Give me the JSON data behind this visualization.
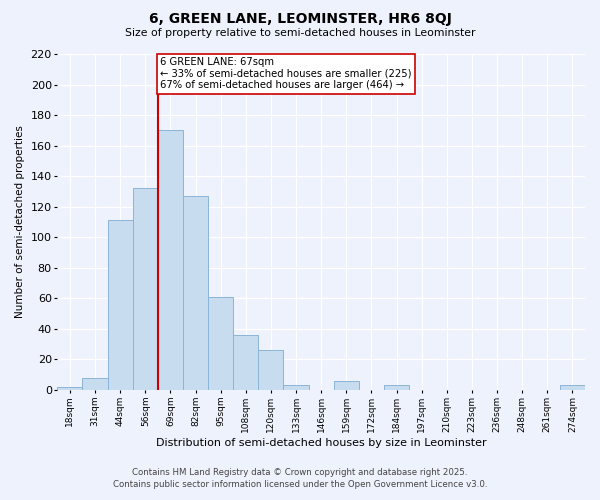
{
  "title": "6, GREEN LANE, LEOMINSTER, HR6 8QJ",
  "subtitle": "Size of property relative to semi-detached houses in Leominster",
  "xlabel": "Distribution of semi-detached houses by size in Leominster",
  "ylabel": "Number of semi-detached properties",
  "bin_labels": [
    "18sqm",
    "31sqm",
    "44sqm",
    "56sqm",
    "69sqm",
    "82sqm",
    "95sqm",
    "108sqm",
    "120sqm",
    "133sqm",
    "146sqm",
    "159sqm",
    "172sqm",
    "184sqm",
    "197sqm",
    "210sqm",
    "223sqm",
    "236sqm",
    "248sqm",
    "261sqm",
    "274sqm"
  ],
  "bar_heights": [
    2,
    8,
    111,
    132,
    170,
    127,
    61,
    36,
    26,
    3,
    0,
    6,
    0,
    3,
    0,
    0,
    0,
    0,
    0,
    0,
    3
  ],
  "bar_color": "#c8dcf0",
  "bar_edge_color": "#8ab4d8",
  "vline_index": 4,
  "vline_color": "#cc0000",
  "annotation_text": "6 GREEN LANE: 67sqm\n← 33% of semi-detached houses are smaller (225)\n67% of semi-detached houses are larger (464) →",
  "annotation_box_color": "#ffffff",
  "annotation_box_edge": "#cc0000",
  "ylim": [
    0,
    220
  ],
  "yticks": [
    0,
    20,
    40,
    60,
    80,
    100,
    120,
    140,
    160,
    180,
    200,
    220
  ],
  "background_color": "#eef2fc",
  "grid_color": "#ffffff",
  "footer_line1": "Contains HM Land Registry data © Crown copyright and database right 2025.",
  "footer_line2": "Contains public sector information licensed under the Open Government Licence v3.0."
}
